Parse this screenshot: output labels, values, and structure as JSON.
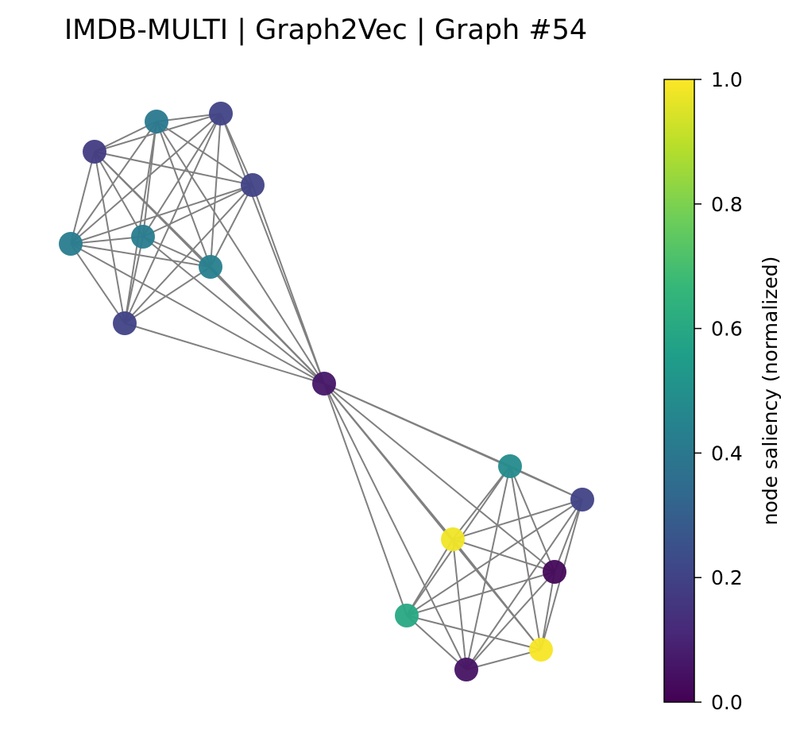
{
  "title": "IMDB-MULTI | Graph2Vec | Graph #54",
  "colorbar": {
    "label": "node saliency (normalized)",
    "min": 0.0,
    "max": 1.0,
    "ticks": [
      "0.0",
      "0.2",
      "0.4",
      "0.6",
      "0.8",
      "1.0"
    ],
    "colormap": "viridis",
    "colormap_stops": [
      "#440154",
      "#482878",
      "#3e4989",
      "#31688e",
      "#26828e",
      "#1f9e89",
      "#35b779",
      "#6ece58",
      "#b5de2b",
      "#fde725"
    ]
  },
  "edge_color": "#808080",
  "chart_data": {
    "type": "network",
    "title": "IMDB-MULTI | Graph2Vec | Graph #54",
    "color_scale": {
      "label": "node saliency (normalized)",
      "range": [
        0.0,
        1.0
      ]
    },
    "nodes": [
      {
        "id": 0,
        "saliency": 0.4
      },
      {
        "id": 1,
        "saliency": 0.2
      },
      {
        "id": 2,
        "saliency": 0.18
      },
      {
        "id": 3,
        "saliency": 0.2
      },
      {
        "id": 4,
        "saliency": 0.42
      },
      {
        "id": 5,
        "saliency": 0.42
      },
      {
        "id": 6,
        "saliency": 0.43
      },
      {
        "id": 7,
        "saliency": 0.2
      },
      {
        "id": 8,
        "saliency": 0.06
      },
      {
        "id": 9,
        "saliency": 0.48
      },
      {
        "id": 10,
        "saliency": 0.2
      },
      {
        "id": 11,
        "saliency": 0.98
      },
      {
        "id": 12,
        "saliency": 0.02
      },
      {
        "id": 13,
        "saliency": 0.6
      },
      {
        "id": 14,
        "saliency": 0.99
      },
      {
        "id": 15,
        "saliency": 0.05
      }
    ],
    "edges": [
      [
        0,
        1
      ],
      [
        0,
        2
      ],
      [
        0,
        3
      ],
      [
        0,
        4
      ],
      [
        0,
        5
      ],
      [
        0,
        6
      ],
      [
        0,
        7
      ],
      [
        0,
        8
      ],
      [
        1,
        2
      ],
      [
        1,
        3
      ],
      [
        1,
        4
      ],
      [
        1,
        5
      ],
      [
        1,
        6
      ],
      [
        1,
        7
      ],
      [
        1,
        8
      ],
      [
        2,
        3
      ],
      [
        2,
        4
      ],
      [
        2,
        5
      ],
      [
        2,
        6
      ],
      [
        2,
        7
      ],
      [
        2,
        8
      ],
      [
        3,
        4
      ],
      [
        3,
        5
      ],
      [
        3,
        6
      ],
      [
        3,
        7
      ],
      [
        3,
        8
      ],
      [
        4,
        5
      ],
      [
        4,
        6
      ],
      [
        4,
        7
      ],
      [
        4,
        8
      ],
      [
        5,
        6
      ],
      [
        5,
        7
      ],
      [
        5,
        8
      ],
      [
        6,
        7
      ],
      [
        6,
        8
      ],
      [
        7,
        8
      ],
      [
        8,
        9
      ],
      [
        8,
        10
      ],
      [
        8,
        11
      ],
      [
        8,
        12
      ],
      [
        8,
        13
      ],
      [
        8,
        14
      ],
      [
        8,
        15
      ],
      [
        9,
        10
      ],
      [
        9,
        11
      ],
      [
        9,
        12
      ],
      [
        9,
        13
      ],
      [
        9,
        14
      ],
      [
        9,
        15
      ],
      [
        10,
        11
      ],
      [
        10,
        12
      ],
      [
        10,
        13
      ],
      [
        10,
        14
      ],
      [
        10,
        15
      ],
      [
        11,
        12
      ],
      [
        11,
        13
      ],
      [
        11,
        14
      ],
      [
        11,
        15
      ],
      [
        12,
        13
      ],
      [
        12,
        14
      ],
      [
        12,
        15
      ],
      [
        13,
        14
      ],
      [
        13,
        15
      ],
      [
        14,
        15
      ]
    ]
  }
}
